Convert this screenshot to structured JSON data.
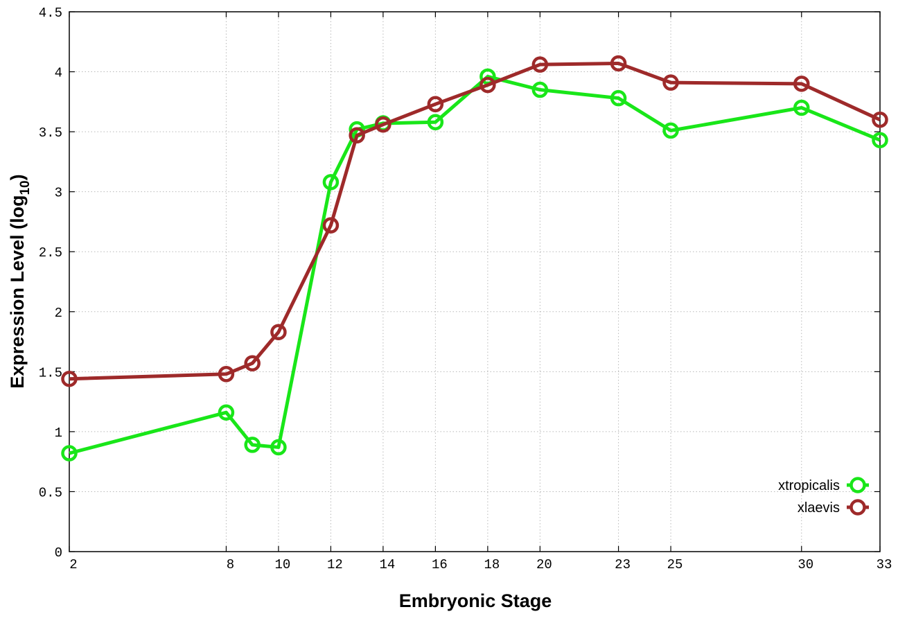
{
  "chart_data": {
    "type": "line",
    "x_axis": {
      "label": "Embryonic Stage",
      "ticks": [
        2,
        8,
        10,
        12,
        14,
        16,
        18,
        20,
        23,
        25,
        30,
        33
      ]
    },
    "y_axis": {
      "label": "Expression Level (log",
      "label_subscript": "10",
      "label_suffix": ")",
      "ylim": [
        0,
        4.5
      ],
      "ticks": [
        "0",
        "0.5",
        "1",
        "1.5",
        "2",
        "2.5",
        "3",
        "3.5",
        "4",
        "4.5"
      ]
    },
    "grid": true,
    "legend_position": "bottom-right",
    "series": [
      {
        "name": "xtropicalis",
        "color": "#19e619",
        "points": [
          {
            "x": 2,
            "y": 0.82
          },
          {
            "x": 8,
            "y": 1.16
          },
          {
            "x": 9,
            "y": 0.89
          },
          {
            "x": 10,
            "y": 0.87
          },
          {
            "x": 12,
            "y": 3.08
          },
          {
            "x": 13,
            "y": 3.52
          },
          {
            "x": 14,
            "y": 3.57
          },
          {
            "x": 16,
            "y": 3.58
          },
          {
            "x": 18,
            "y": 3.96
          },
          {
            "x": 20,
            "y": 3.85
          },
          {
            "x": 23,
            "y": 3.78
          },
          {
            "x": 25,
            "y": 3.51
          },
          {
            "x": 30,
            "y": 3.7
          },
          {
            "x": 33,
            "y": 3.43
          }
        ]
      },
      {
        "name": "xlaevis",
        "color": "#9e2a2a",
        "points": [
          {
            "x": 2,
            "y": 1.44
          },
          {
            "x": 8,
            "y": 1.48
          },
          {
            "x": 9,
            "y": 1.57
          },
          {
            "x": 10,
            "y": 1.83
          },
          {
            "x": 12,
            "y": 2.72
          },
          {
            "x": 13,
            "y": 3.47
          },
          {
            "x": 14,
            "y": 3.56
          },
          {
            "x": 16,
            "y": 3.73
          },
          {
            "x": 18,
            "y": 3.89
          },
          {
            "x": 20,
            "y": 4.06
          },
          {
            "x": 23,
            "y": 4.07
          },
          {
            "x": 25,
            "y": 3.91
          },
          {
            "x": 30,
            "y": 3.9
          },
          {
            "x": 33,
            "y": 3.6
          }
        ]
      }
    ]
  }
}
